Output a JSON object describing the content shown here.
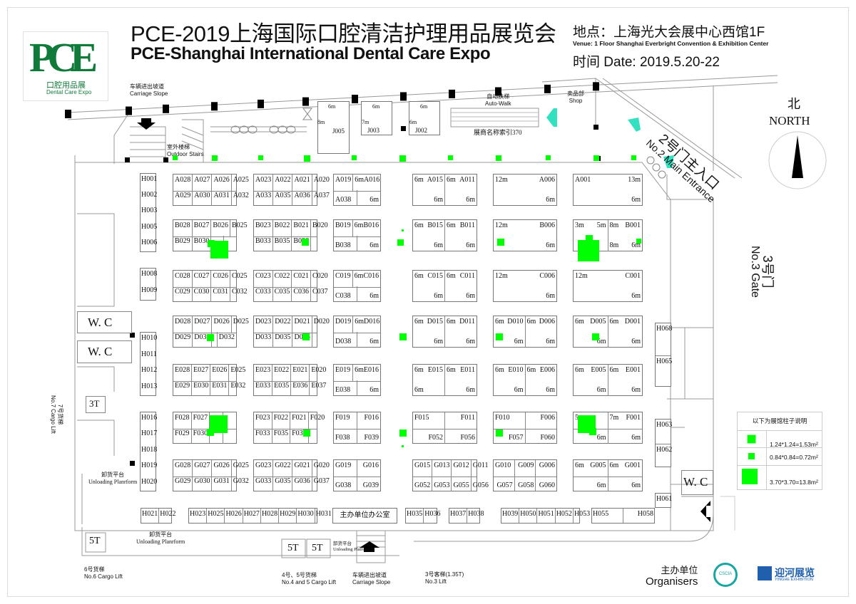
{
  "header": {
    "title_cn": "PCE-2019上海国际口腔清洁护理用品展览会",
    "title_en": "PCE-Shanghai International Dental Care Expo",
    "venue_cn": "地点：上海光大会展中心西馆1F",
    "venue_en": "Venue: 1 Floor Shanghai Everbright Convention & Exhibition Center",
    "date": "时间 Date: 2019.5.20-22",
    "logo": {
      "mark": "PCE",
      "cn": "口腔用品展",
      "en": "Dental Care Expo",
      "color": "#0f7a3a"
    }
  },
  "map_labels": {
    "carriage_slope_top_cn": "车辆进出坡道",
    "carriage_slope_top_en": "Carriage Slope",
    "outdoor_stairs_cn": "室外楼梯",
    "outdoor_stairs_en": "Outdoor Stairs",
    "auto_walk_cn": "自动扶梯",
    "auto_walk_en": "Auto-Walk",
    "shop_cn": "卖品部",
    "shop_en": "Shop",
    "index_board": "展商名称索引370",
    "main_entrance_cn": "2号门主入口",
    "main_entrance_en": "No.2 Main Entrance",
    "north_cn": "北",
    "north_en": "NORTH",
    "gate3_cn": "3号门",
    "gate3_en": "No.3 Gate",
    "wc": "W. C",
    "lift_3t": "3T",
    "lift_5t": "5T",
    "cargo_lift7_cn": "7号货梯",
    "cargo_lift7_en": "No.7 Cargo Lift",
    "unloading_cn": "卸货平台",
    "unloading_en": "Unloading Planrform",
    "unloading_platform_en": "Unloading Platform",
    "cargo_lift6_cn": "6号货梯",
    "cargo_lift6_en": "No.6 Cargo Lift",
    "cargo_lift45_cn": "4号、5号货梯",
    "cargo_lift45_en": "No.4 and 5 Cargo Lift",
    "carriage_slope_bottom_cn": "车辆进出坡道",
    "carriage_slope_bottom_en": "Carriage Slope",
    "lift3_cn": "3号客梯(1.35T)",
    "lift3_en": "No.3 Lift",
    "organiser_office": "主办单位办公室"
  },
  "j_booths": [
    {
      "id": "J005",
      "top": "6m",
      "side": "8m"
    },
    {
      "id": "J003",
      "top": "6m",
      "side": "7m"
    },
    {
      "id": "J002",
      "top": "6m",
      "side": "6m"
    }
  ],
  "booth_rows": [
    {
      "row": "A",
      "blocks": [
        {
          "top": [
            "A028",
            "A027",
            "A026",
            "A025"
          ],
          "bottom": [
            "A029",
            "A030",
            "A031",
            "A032"
          ]
        },
        {
          "top": [
            "A023",
            "A022",
            "A021",
            "A020"
          ],
          "bottom": [
            "A033",
            "A035",
            "A036",
            "A037"
          ]
        },
        {
          "top": [
            "A019",
            "6m A016"
          ],
          "bottom": [
            "A038",
            "6m"
          ]
        },
        {
          "top": [
            "6m A015",
            "6m A011"
          ],
          "bottom": [
            "6m",
            "6m"
          ]
        },
        {
          "top": [
            "12m A006"
          ],
          "bottom": [
            "6m"
          ]
        },
        {
          "top": [
            "A001 13m"
          ],
          "bottom": [
            "6m"
          ]
        }
      ]
    },
    {
      "row": "B",
      "blocks": [
        {
          "top": [
            "B028",
            "B027",
            "B026",
            "B025"
          ],
          "bottom": [
            "B029",
            "B030",
            "",
            ""
          ]
        },
        {
          "top": [
            "B023",
            "B022",
            "B021",
            "B020"
          ],
          "bottom": [
            "B033",
            "B035",
            "B036",
            ""
          ]
        },
        {
          "top": [
            "B019",
            "6m B016"
          ],
          "bottom": [
            "B038",
            "6m"
          ]
        },
        {
          "top": [
            "6m B015",
            "6m B011"
          ],
          "bottom": [
            "6m",
            "6m"
          ]
        },
        {
          "top": [
            "12m B006"
          ],
          "bottom": [
            "6m"
          ]
        },
        {
          "top": [
            "3m 5m",
            "8m B001"
          ],
          "bottom": [
            "",
            "8m 6m"
          ]
        }
      ]
    },
    {
      "row": "C",
      "blocks": [
        {
          "top": [
            "C028",
            "C027",
            "C026",
            "C025"
          ],
          "bottom": [
            "C029",
            "C030",
            "C031",
            "C032"
          ]
        },
        {
          "top": [
            "C023",
            "C022",
            "C021",
            "C020"
          ],
          "bottom": [
            "C033",
            "C035",
            "C036",
            "C037"
          ]
        },
        {
          "top": [
            "C019",
            "6m C016"
          ],
          "bottom": [
            "C038",
            "6m"
          ]
        },
        {
          "top": [
            "6m C015",
            "6m C011"
          ],
          "bottom": [
            "6m",
            "6m"
          ]
        },
        {
          "top": [
            "12m C006"
          ],
          "bottom": [
            "6m"
          ]
        },
        {
          "top": [
            "12m C001"
          ],
          "bottom": [
            "6m"
          ]
        }
      ]
    },
    {
      "row": "D",
      "blocks": [
        {
          "top": [
            "D028",
            "D027",
            "D026",
            "D025"
          ],
          "bottom": [
            "D029",
            "D030",
            "",
            "D032"
          ]
        },
        {
          "top": [
            "D023",
            "D022",
            "D021",
            "D020"
          ],
          "bottom": [
            "D033",
            "D035",
            "D036",
            ""
          ]
        },
        {
          "top": [
            "D019",
            "6m D016"
          ],
          "bottom": [
            "D038",
            "6m"
          ]
        },
        {
          "top": [
            "6m D015",
            "6m D011"
          ],
          "bottom": [
            "6m",
            "6m"
          ]
        },
        {
          "top": [
            "6m D010",
            "6m D006"
          ],
          "bottom": [
            "6m",
            "6m"
          ]
        },
        {
          "top": [
            "6m D005",
            "6m D001"
          ],
          "bottom": [
            "6m",
            "6m"
          ]
        }
      ]
    },
    {
      "row": "E",
      "blocks": [
        {
          "top": [
            "E028",
            "E027",
            "E026",
            "E025"
          ],
          "bottom": [
            "E029",
            "E030",
            "E031",
            "E032"
          ]
        },
        {
          "top": [
            "E023",
            "E022",
            "E021",
            "E020"
          ],
          "bottom": [
            "E033",
            "E035",
            "E036",
            "E037"
          ]
        },
        {
          "top": [
            "E019",
            "6m E016"
          ],
          "bottom": [
            "E038",
            "6m"
          ]
        },
        {
          "top": [
            "6m E015",
            "6m E011"
          ],
          "bottom": [
            "6m",
            "6m"
          ]
        },
        {
          "top": [
            "6m E010",
            "6m E006"
          ],
          "bottom": [
            "6m",
            "6m"
          ]
        },
        {
          "top": [
            "6m E005",
            "6m E001"
          ],
          "bottom": [
            "6m",
            "6m"
          ]
        }
      ]
    },
    {
      "row": "F",
      "blocks": [
        {
          "top": [
            "F028",
            "F027",
            "",
            ""
          ],
          "bottom": [
            "F029",
            "F030",
            "",
            ""
          ]
        },
        {
          "top": [
            "F023",
            "F022",
            "F021",
            "F020"
          ],
          "bottom": [
            "F033",
            "F035",
            "F036",
            ""
          ]
        },
        {
          "top": [
            "F019",
            "F016"
          ],
          "bottom": [
            "F038",
            "F039"
          ]
        },
        {
          "top": [
            "F015",
            "F011"
          ],
          "bottom": [
            "F052",
            "F056"
          ]
        },
        {
          "top": [
            "F010",
            "F006"
          ],
          "bottom": [
            "F057",
            "F060"
          ]
        },
        {
          "top": [
            "5m",
            "7m F001"
          ],
          "bottom": [
            "6m",
            "6m"
          ]
        }
      ]
    },
    {
      "row": "G",
      "blocks": [
        {
          "top": [
            "G028",
            "G027",
            "G026",
            "G025"
          ],
          "bottom": [
            "G029",
            "G030",
            "G031",
            "G032"
          ]
        },
        {
          "top": [
            "G023",
            "G022",
            "G021",
            "G020"
          ],
          "bottom": [
            "G033",
            "G035",
            "G036",
            "G037"
          ]
        },
        {
          "top": [
            "G019",
            "G016"
          ],
          "bottom": [
            "G038",
            "G039"
          ]
        },
        {
          "top": [
            "G015",
            "G013",
            "G012",
            "G011"
          ],
          "bottom": [
            "G052",
            "G053",
            "G055",
            "G056"
          ]
        },
        {
          "top": [
            "G010",
            "G009",
            "G006"
          ],
          "bottom": [
            "G057",
            "G058",
            "G060"
          ]
        },
        {
          "top": [
            "6m G005",
            "6m G001"
          ],
          "bottom": [
            "6m",
            "6m"
          ]
        }
      ]
    }
  ],
  "h_left": [
    [
      "H001",
      "H002",
      "H003",
      "H005",
      "H006"
    ],
    [
      "H008",
      "H009"
    ],
    [
      "H010",
      "H011",
      "H012",
      "H013"
    ],
    [
      "H016",
      "H017",
      "H018",
      "H019",
      "H020"
    ]
  ],
  "h_bottom": [
    [
      "H021",
      "H022"
    ],
    [
      "H023",
      "H025",
      "H026",
      "H027",
      "H028",
      "H029",
      "H030",
      "H031"
    ],
    [
      "H035",
      "H036"
    ],
    [
      "H037",
      "H038"
    ],
    [
      "H039",
      "H050",
      "H051",
      "H052",
      "H053"
    ],
    [
      "H055",
      "H058"
    ]
  ],
  "h_right": [
    [
      "H068",
      "H065"
    ],
    [
      "H063",
      "H062"
    ],
    [
      "H061"
    ]
  ],
  "legend": {
    "title": "以下为展馆柱子说明",
    "items": [
      {
        "size": "1.24*1.24=1.53m²"
      },
      {
        "size": "0.84*0.84=0.72m²"
      },
      {
        "size": "3.70*3.70=13.8m²"
      }
    ],
    "pillar_color": "#00ff00"
  },
  "footer": {
    "organisers_cn": "主办单位",
    "organisers_en": "Organisers",
    "org1_logo": "CSCIA",
    "org2_cn": "迎河展览",
    "org2_en": "YINGHE EXHIBITION",
    "org2_color": "#1f5fae",
    "org1_color": "#17a6a0"
  },
  "colors": {
    "arrow_cyan": "#33e0c0",
    "pillar_green": "#00ff00"
  }
}
